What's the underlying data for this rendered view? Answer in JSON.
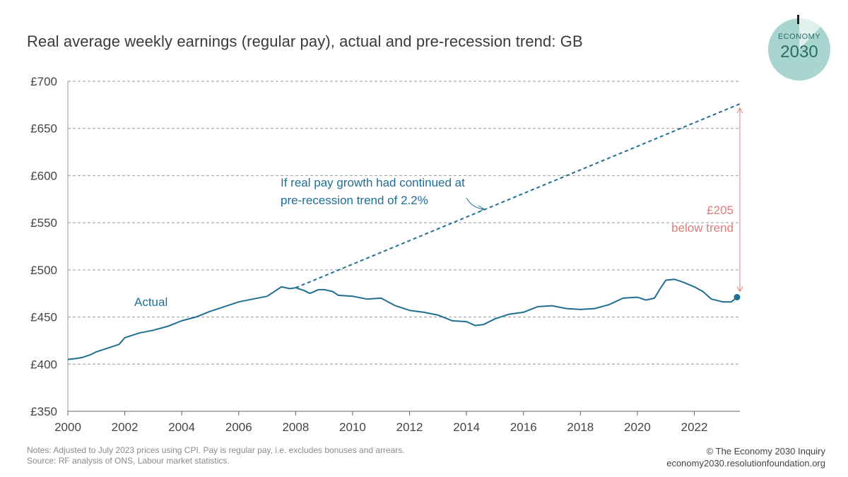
{
  "title": "Real average weekly earnings (regular pay), actual and pre-recession trend: GB",
  "logo": {
    "line1": "ECONOMY",
    "line2": "2030"
  },
  "notes": {
    "line1": "Notes: Adjusted to July 2023 prices using CPI. Pay is regular pay, i.e. excludes bonuses and arrears.",
    "line2": "Source: RF analysis of ONS, Labour market statistics."
  },
  "credit": {
    "line1": "© The Economy 2030 Inquiry",
    "line2": "economy2030.resolutionfoundation.org"
  },
  "colors": {
    "actual": "#1f6e93",
    "trend": "#1f6e93",
    "gap": "#e07a7a",
    "grid": "#9a9a9a",
    "logo": "#a8d5cf"
  },
  "chart_data": {
    "type": "line",
    "xlim": [
      2000,
      2023.6
    ],
    "ylim": [
      350,
      700
    ],
    "y_ticks": [
      350,
      400,
      450,
      500,
      550,
      600,
      650,
      700
    ],
    "y_tick_labels": [
      "£350",
      "£400",
      "£450",
      "£500",
      "£550",
      "£600",
      "£650",
      "£700"
    ],
    "x_ticks": [
      2000,
      2002,
      2004,
      2006,
      2008,
      2010,
      2012,
      2014,
      2016,
      2018,
      2020,
      2022
    ],
    "x_tick_labels": [
      "2000",
      "2002",
      "2004",
      "2006",
      "2008",
      "2010",
      "2012",
      "2014",
      "2016",
      "2018",
      "2020",
      "2022"
    ],
    "grid": "horizontal dashed",
    "series": [
      {
        "name": "Actual",
        "style": "solid",
        "x": [
          2000.0,
          2000.3,
          2000.5,
          2000.8,
          2001.0,
          2001.5,
          2001.8,
          2002.0,
          2002.5,
          2003.0,
          2003.5,
          2004.0,
          2004.5,
          2005.0,
          2005.5,
          2006.0,
          2006.5,
          2007.0,
          2007.3,
          2007.5,
          2007.8,
          2008.0,
          2008.3,
          2008.5,
          2008.8,
          2009.0,
          2009.3,
          2009.5,
          2010.0,
          2010.5,
          2011.0,
          2011.5,
          2012.0,
          2012.5,
          2013.0,
          2013.5,
          2014.0,
          2014.3,
          2014.6,
          2015.0,
          2015.5,
          2016.0,
          2016.5,
          2017.0,
          2017.5,
          2018.0,
          2018.5,
          2019.0,
          2019.5,
          2020.0,
          2020.3,
          2020.6,
          2020.8,
          2021.0,
          2021.3,
          2021.6,
          2022.0,
          2022.3,
          2022.6,
          2023.0,
          2023.3,
          2023.5
        ],
        "y": [
          405,
          406,
          407,
          410,
          413,
          418,
          421,
          428,
          433,
          436,
          440,
          446,
          450,
          456,
          461,
          466,
          469,
          472,
          478,
          482,
          480,
          481,
          478,
          475,
          479,
          479,
          477,
          473,
          472,
          469,
          470,
          462,
          457,
          455,
          452,
          446,
          445,
          441,
          442,
          448,
          453,
          455,
          461,
          462,
          459,
          458,
          459,
          463,
          470,
          471,
          468,
          470,
          480,
          489,
          490,
          487,
          482,
          477,
          469,
          466,
          466,
          471
        ]
      },
      {
        "name": "Pre-recession trend",
        "style": "dashed",
        "x": [
          2008.0,
          2023.6
        ],
        "y": [
          481,
          676
        ]
      }
    ],
    "annotations": {
      "actual_label": "Actual",
      "trend_label_line1": "If real pay growth had continued at",
      "trend_label_line2": "pre-recession trend of 2.2%",
      "gap_value": "£205",
      "gap_text": "below trend",
      "gap_from": 471,
      "gap_to": 676
    }
  }
}
